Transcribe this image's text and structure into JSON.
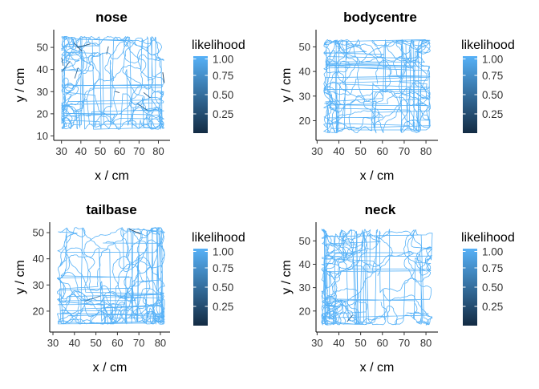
{
  "colorbar": {
    "title": "likelihood",
    "ticks": [
      "1.00",
      "0.75",
      "0.50",
      "0.25"
    ],
    "tick_values": [
      1.0,
      0.75,
      0.5,
      0.25
    ],
    "color_low": "#132B43",
    "color_high": "#56B1F7"
  },
  "colors": {
    "track": "#56B1F7",
    "axis": "#000000",
    "background": "#ffffff"
  },
  "chart_data": [
    {
      "type": "path",
      "title": "nose",
      "xlabel": "x / cm",
      "ylabel": "y / cm",
      "xlim": [
        26,
        86
      ],
      "ylim": [
        8,
        58
      ],
      "xticks": [
        30,
        40,
        50,
        60,
        70,
        80
      ],
      "yticks": [
        10,
        20,
        30,
        40,
        50
      ],
      "arena": {
        "x": [
          30,
          83
        ],
        "y": [
          13,
          55
        ]
      },
      "color_field": "likelihood",
      "likelihood_range": [
        0,
        1
      ],
      "low_likelihood_fraction": 0.06,
      "grid": false,
      "legend": "right"
    },
    {
      "type": "path",
      "title": "bodycentre",
      "xlabel": "x / cm",
      "ylabel": "y / cm",
      "xlim": [
        29.5,
        85.5
      ],
      "ylim": [
        12,
        57
      ],
      "xticks": [
        30,
        40,
        50,
        60,
        70,
        80
      ],
      "yticks": [
        20,
        30,
        40,
        50
      ],
      "arena": {
        "x": [
          33,
          82
        ],
        "y": [
          15,
          53
        ]
      },
      "color_field": "likelihood",
      "likelihood_range": [
        0,
        1
      ],
      "low_likelihood_fraction": 0.0,
      "grid": false,
      "legend": "right"
    },
    {
      "type": "path",
      "title": "tailbase",
      "xlabel": "x / cm",
      "ylabel": "y / cm",
      "xlim": [
        28.5,
        84.5
      ],
      "ylim": [
        12,
        54
      ],
      "xticks": [
        30,
        40,
        50,
        60,
        70,
        80
      ],
      "yticks": [
        20,
        30,
        40,
        50
      ],
      "arena": {
        "x": [
          32,
          82
        ],
        "y": [
          15,
          52
        ]
      },
      "color_field": "likelihood",
      "likelihood_range": [
        0,
        1
      ],
      "low_likelihood_fraction": 0.01,
      "grid": false,
      "legend": "right"
    },
    {
      "type": "path",
      "title": "neck",
      "xlabel": "x / cm",
      "ylabel": "y / cm",
      "xlim": [
        29.5,
        85.5
      ],
      "ylim": [
        11,
        58
      ],
      "xticks": [
        30,
        40,
        50,
        60,
        70,
        80
      ],
      "yticks": [
        20,
        30,
        40,
        50
      ],
      "arena": {
        "x": [
          32,
          83
        ],
        "y": [
          14,
          55
        ]
      },
      "color_field": "likelihood",
      "likelihood_range": [
        0,
        1
      ],
      "low_likelihood_fraction": 0.005,
      "grid": false,
      "legend": "right"
    }
  ]
}
